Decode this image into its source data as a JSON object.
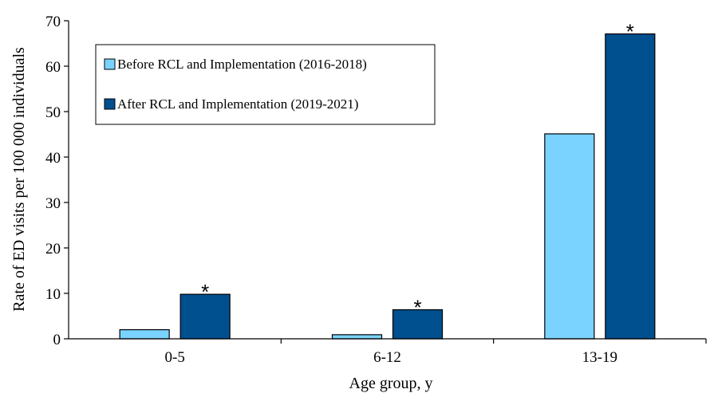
{
  "chart_data": {
    "type": "bar",
    "title": "",
    "xlabel": "Age group, y",
    "ylabel": "Rate of ED visits per 100 000 individuals",
    "categories": [
      "0-5",
      "6-12",
      "13-19"
    ],
    "ylim": [
      0,
      70
    ],
    "yticks": [
      0,
      10,
      20,
      30,
      40,
      50,
      60,
      70
    ],
    "grid": false,
    "legend_position": "top-left",
    "series": [
      {
        "name": "Before RCL and Implementation (2016-2018)",
        "color": "#7ad3ff",
        "values": [
          2.0,
          0.9,
          45.1
        ]
      },
      {
        "name": "After RCL and Implementation (2019-2021)",
        "color": "#004f8f",
        "values": [
          9.8,
          6.4,
          67.1
        ]
      }
    ],
    "annotations": [
      {
        "category": "0-5",
        "series_index": 1,
        "text": "*"
      },
      {
        "category": "6-12",
        "series_index": 1,
        "text": "*"
      },
      {
        "category": "13-19",
        "series_index": 1,
        "text": "*"
      }
    ]
  }
}
